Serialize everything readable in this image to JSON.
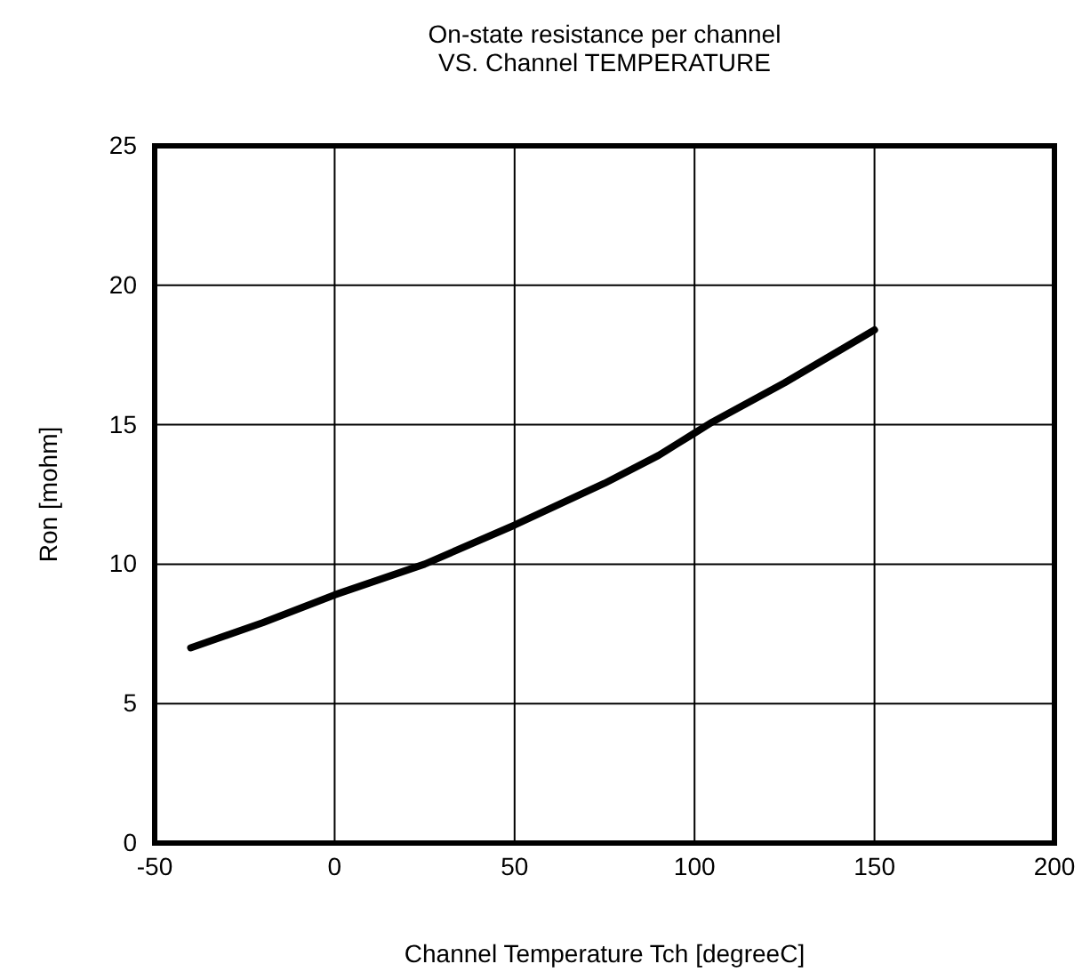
{
  "chart_data": {
    "type": "line",
    "title": "On-state  resistance per channel\nVS. Channel TEMPERATURE",
    "xlabel": "Channel Temperature   Tch [degreeC]",
    "ylabel": "Ron [mohm]",
    "x": [
      -40,
      -20,
      0,
      25,
      50,
      75,
      90,
      100,
      105,
      125,
      150
    ],
    "series": [
      {
        "color": "#000000",
        "values": [
          7.0,
          7.9,
          8.9,
          10.0,
          11.4,
          12.9,
          13.9,
          14.7,
          15.1,
          16.5,
          18.4
        ]
      }
    ],
    "xlim": [
      -50,
      200
    ],
    "xticks": [
      -50,
      0,
      50,
      100,
      150,
      200
    ],
    "ylim": [
      0,
      25
    ],
    "yticks": [
      0,
      5,
      10,
      15,
      20,
      25
    ],
    "grid": true,
    "marker": "none",
    "line_style": "solid"
  }
}
